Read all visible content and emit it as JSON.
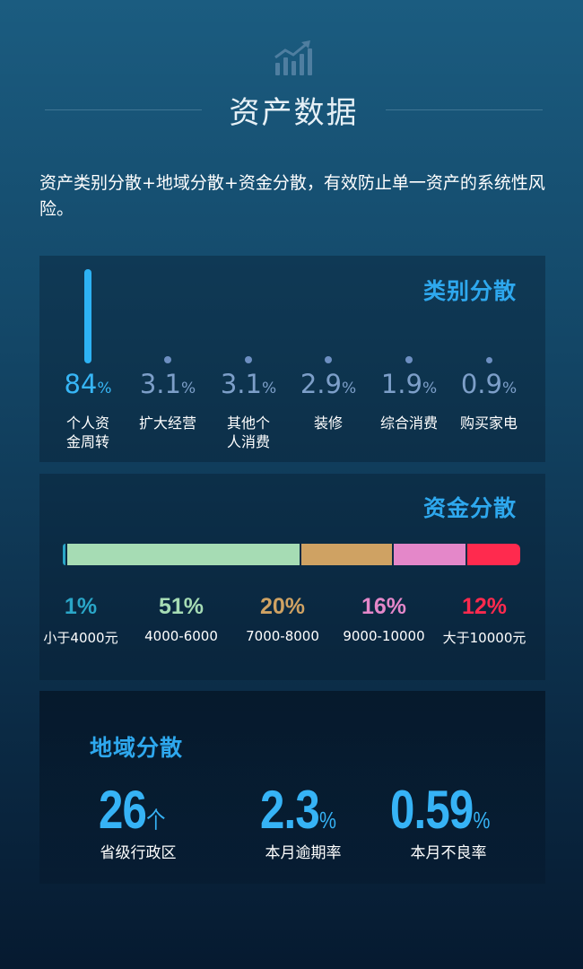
{
  "header": {
    "title": "资产数据",
    "icon": "bar-chart-trend-icon"
  },
  "intro": "资产类别分散+地域分散+资金分散，有效防止单一资产的系统性风险。",
  "colors": {
    "accent": "#2ea8ee",
    "funds": [
      "#2aa6c8",
      "#a6dcb4",
      "#cfa263",
      "#e487c9",
      "#ff2a4e"
    ]
  },
  "chart_data": [
    {
      "type": "bar",
      "title": "类别分散",
      "categories": [
        "个人资金周转",
        "扩大经营",
        "其他个人消费",
        "装修",
        "综合消费",
        "购买家电"
      ],
      "values": [
        84,
        3.1,
        3.1,
        2.9,
        1.9,
        0.9
      ],
      "value_labels": [
        "84",
        "3.1",
        "3.1",
        "2.9",
        "1.9",
        "0.9"
      ],
      "label_lines": [
        [
          "个人资",
          "金周转"
        ],
        [
          "扩大经营"
        ],
        [
          "其他个",
          "人消费"
        ],
        [
          "装修"
        ],
        [
          "综合消费"
        ],
        [
          "购买家电"
        ]
      ],
      "unit": "%"
    },
    {
      "type": "bar",
      "subtype": "stacked-horizontal",
      "title": "资金分散",
      "categories": [
        "小于4000元",
        "4000-6000",
        "7000-8000",
        "9000-10000",
        "大于10000元"
      ],
      "values": [
        1,
        51,
        20,
        16,
        12
      ],
      "value_labels": [
        "1%",
        "51%",
        "20%",
        "16%",
        "12%"
      ],
      "unit": "%"
    }
  ],
  "region": {
    "title": "地域分散",
    "stats": [
      {
        "value": "26",
        "unit": "个",
        "label": "省级行政区"
      },
      {
        "value": "2.3",
        "unit": "%",
        "label": "本月逾期率"
      },
      {
        "value": "0.59",
        "unit": "%",
        "label": "本月不良率"
      }
    ]
  }
}
